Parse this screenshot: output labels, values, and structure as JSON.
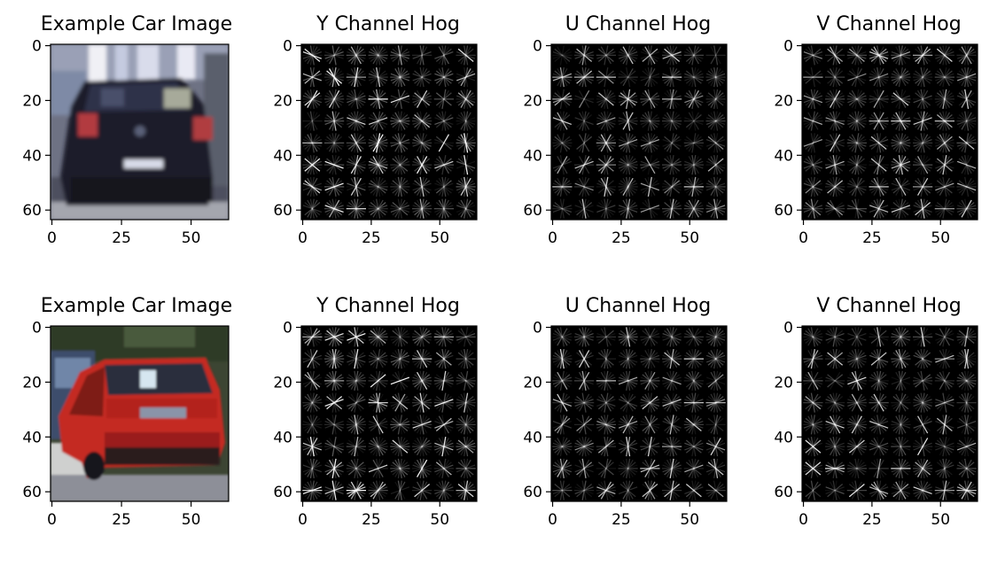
{
  "figure": {
    "rows": [
      {
        "panels": [
          {
            "title": "Example Car Image",
            "kind": "photo",
            "photo": "dark-car-rear"
          },
          {
            "title": "Y Channel Hog",
            "kind": "hog"
          },
          {
            "title": "U Channel Hog",
            "kind": "hog"
          },
          {
            "title": "V Channel Hog",
            "kind": "hog"
          }
        ]
      },
      {
        "panels": [
          {
            "title": "Example Car Image",
            "kind": "photo",
            "photo": "red-car-rear"
          },
          {
            "title": "Y Channel Hog",
            "kind": "hog"
          },
          {
            "title": "U Channel Hog",
            "kind": "hog"
          },
          {
            "title": "V Channel Hog",
            "kind": "hog"
          }
        ]
      }
    ],
    "x_ticks": [
      "0",
      "25",
      "50"
    ],
    "y_ticks": [
      "0",
      "20",
      "40",
      "60"
    ],
    "x_tick_values": [
      0,
      25,
      50
    ],
    "y_tick_values": [
      0,
      20,
      40,
      60
    ],
    "data_extent": 64,
    "hog_cells": 8,
    "colors": {
      "hog_background": "#000000",
      "hog_stroke": "#ffffff",
      "car_dark": "#1f2233",
      "car_red": "#cc2b22",
      "background_top": "#8a8d9e",
      "road": "#8f8f96"
    }
  }
}
